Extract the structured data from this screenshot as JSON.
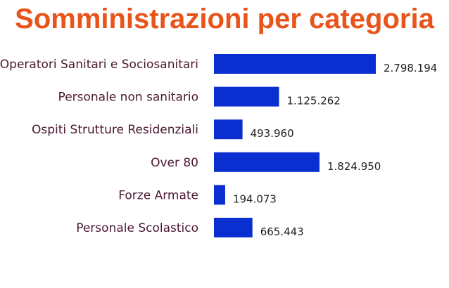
{
  "chart_data": {
    "type": "bar",
    "orientation": "horizontal",
    "title": "Somministrazioni per categoria",
    "categories": [
      "Operatori Sanitari e Sociosanitari",
      "Personale non sanitario",
      "Ospiti Strutture Residenziali",
      "Over 80",
      "Forze Armate",
      "Personale Scolastico"
    ],
    "values": [
      2798194,
      1125262,
      493960,
      1824950,
      194073,
      665443
    ],
    "value_labels": [
      "2.798.194",
      "1.125.262",
      "493.960",
      "1.824.950",
      "194.073",
      "665.443"
    ],
    "xlabel": "",
    "ylabel": "",
    "grid": false,
    "legend": "none"
  },
  "colors": {
    "title": "#e8541a",
    "bar": "#0a2ed0",
    "category_text": "#4a1832",
    "value_text": "#222222",
    "background": "#ffffff"
  }
}
